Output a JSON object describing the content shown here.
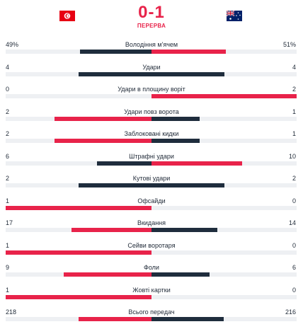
{
  "match": {
    "score": "0-1",
    "status": "ПЕРЕРВА",
    "home_flag": "flag-tunisia-icon",
    "away_flag": "flag-australia-icon"
  },
  "colors": {
    "leading": "#e8234a",
    "trailing": "#1f2d3d",
    "track": "#eef0f3"
  },
  "stats": [
    {
      "name": "Володіння м'ячем",
      "home": "49%",
      "away": "51%",
      "home_num": 49,
      "away_num": 51
    },
    {
      "name": "Удари",
      "home": "4",
      "away": "4",
      "home_num": 4,
      "away_num": 4
    },
    {
      "name": "Удари в площину воріт",
      "home": "0",
      "away": "2",
      "home_num": 0,
      "away_num": 2
    },
    {
      "name": "Удари повз ворота",
      "home": "2",
      "away": "1",
      "home_num": 2,
      "away_num": 1
    },
    {
      "name": "Заблоковані кидки",
      "home": "2",
      "away": "1",
      "home_num": 2,
      "away_num": 1
    },
    {
      "name": "Штрафні удари",
      "home": "6",
      "away": "10",
      "home_num": 6,
      "away_num": 10
    },
    {
      "name": "Кутові удари",
      "home": "2",
      "away": "2",
      "home_num": 2,
      "away_num": 2
    },
    {
      "name": "Офсайди",
      "home": "1",
      "away": "0",
      "home_num": 1,
      "away_num": 0
    },
    {
      "name": "Вкидання",
      "home": "17",
      "away": "14",
      "home_num": 17,
      "away_num": 14
    },
    {
      "name": "Сейви воротаря",
      "home": "1",
      "away": "0",
      "home_num": 1,
      "away_num": 0
    },
    {
      "name": "Фоли",
      "home": "9",
      "away": "6",
      "home_num": 9,
      "away_num": 6
    },
    {
      "name": "Жовті картки",
      "home": "1",
      "away": "0",
      "home_num": 1,
      "away_num": 0
    },
    {
      "name": "Всього передач",
      "home": "218",
      "away": "216",
      "home_num": 218,
      "away_num": 216
    }
  ]
}
